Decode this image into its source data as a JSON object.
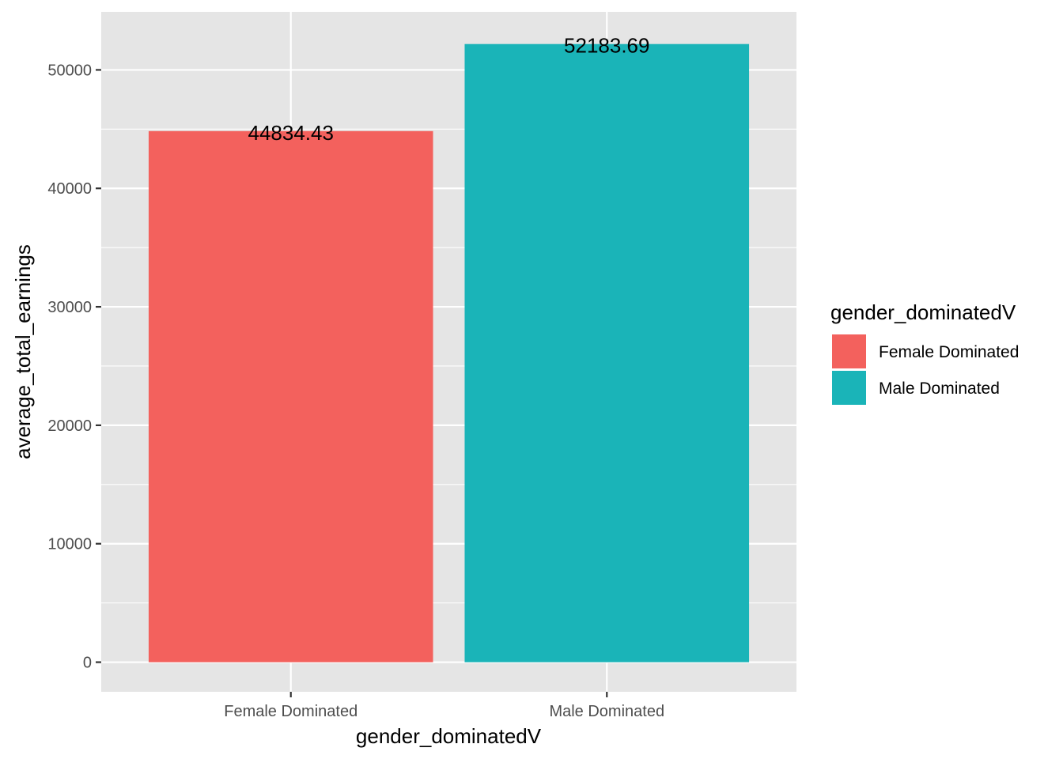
{
  "chart_data": {
    "type": "bar",
    "categories": [
      "Female Dominated",
      "Male Dominated"
    ],
    "values": [
      44834.43,
      52183.69
    ],
    "data_labels": [
      "44834.43",
      "52183.69"
    ],
    "colors": [
      "#F3615D",
      "#1AB4B8"
    ],
    "xlabel": "gender_dominatedV",
    "ylabel": "average_total_earnings",
    "ylim": [
      -2500,
      54900
    ],
    "yticks": [
      0,
      10000,
      20000,
      30000,
      40000,
      50000
    ],
    "ytick_labels": [
      "0",
      "10000",
      "20000",
      "30000",
      "40000",
      "50000"
    ],
    "grid": true,
    "panel_background": "#E5E5E5",
    "grid_color": "#FFFFFF",
    "legend": {
      "title": "gender_dominatedV",
      "position": "right",
      "entries": [
        "Female Dominated",
        "Male Dominated"
      ]
    }
  }
}
